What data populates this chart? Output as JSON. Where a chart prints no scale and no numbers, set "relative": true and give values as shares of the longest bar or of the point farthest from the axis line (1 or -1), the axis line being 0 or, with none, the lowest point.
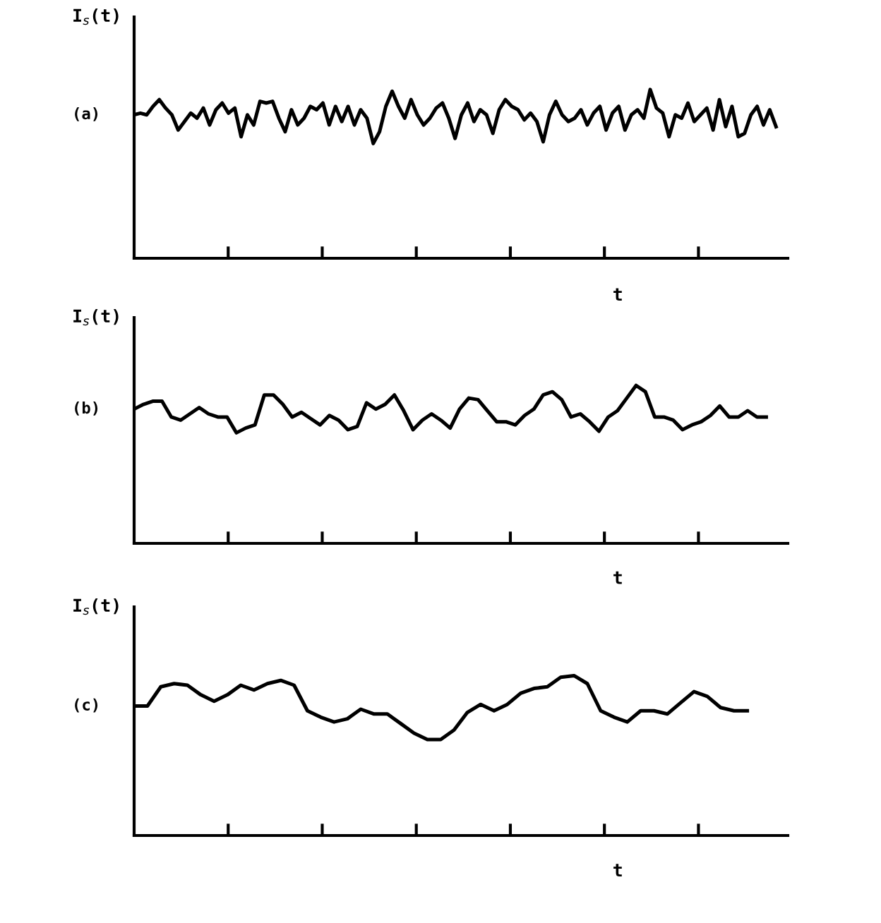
{
  "chart_data": [
    {
      "type": "line",
      "relative": true,
      "ylabel": "I$_{s}$(t)",
      "xlabel": "t",
      "annotations": [
        "(a)"
      ],
      "categories": [
        null,
        null,
        null,
        null,
        null,
        null,
        null,
        null,
        null,
        null,
        null,
        null,
        null,
        null,
        null,
        null,
        null,
        null,
        null,
        null,
        null,
        null,
        null,
        null,
        null,
        null,
        null,
        null,
        null,
        null,
        null,
        null,
        null,
        null,
        null,
        null,
        null,
        null,
        null,
        null,
        null,
        null,
        null,
        null,
        null,
        null,
        null,
        null,
        null,
        null,
        null,
        null,
        null,
        null,
        null,
        null,
        null,
        null,
        null,
        null,
        null,
        null,
        null,
        null,
        null,
        null,
        null,
        null,
        null,
        null,
        null,
        null,
        null,
        null,
        null,
        null,
        null,
        null,
        null,
        null,
        null,
        null,
        null,
        null,
        null,
        null,
        null,
        null,
        null,
        null,
        null,
        null,
        null,
        null,
        null,
        null,
        null,
        null,
        null,
        null,
        null,
        null,
        null
      ],
      "series": [
        {
          "color": "#000000",
          "values": [
            0.85,
            0.86,
            0.85,
            0.9,
            0.94,
            0.89,
            0.85,
            0.76,
            0.81,
            0.86,
            0.83,
            0.89,
            0.79,
            0.88,
            0.92,
            0.86,
            0.89,
            0.72,
            0.85,
            0.79,
            0.93,
            0.92,
            0.93,
            0.83,
            0.75,
            0.88,
            0.79,
            0.83,
            0.9,
            0.88,
            0.92,
            0.79,
            0.9,
            0.81,
            0.9,
            0.79,
            0.88,
            0.83,
            0.68,
            0.75,
            0.9,
            0.99,
            0.9,
            0.83,
            0.94,
            0.85,
            0.79,
            0.83,
            0.89,
            0.92,
            0.83,
            0.71,
            0.85,
            0.92,
            0.81,
            0.88,
            0.85,
            0.74,
            0.88,
            0.94,
            0.9,
            0.88,
            0.82,
            0.86,
            0.81,
            0.69,
            0.85,
            0.93,
            0.85,
            0.81,
            0.83,
            0.88,
            0.79,
            0.86,
            0.9,
            0.76,
            0.86,
            0.9,
            0.76,
            0.85,
            0.88,
            0.83,
            1,
            0.89,
            0.86,
            0.72,
            0.85,
            0.83,
            0.92,
            0.81,
            0.85,
            0.89,
            0.76,
            0.94,
            0.78,
            0.9,
            0.72,
            0.74,
            0.85,
            0.9,
            0.79,
            0.88,
            0.78
          ]
        }
      ]
    },
    {
      "type": "line",
      "relative": true,
      "ylabel": "I$_{s}$(t)",
      "xlabel": "t",
      "annotations": [
        "(b)"
      ],
      "categories": [
        null,
        null,
        null,
        null,
        null,
        null,
        null,
        null,
        null,
        null,
        null,
        null,
        null,
        null,
        null,
        null,
        null,
        null,
        null,
        null,
        null,
        null,
        null,
        null,
        null,
        null,
        null,
        null,
        null,
        null,
        null,
        null,
        null,
        null,
        null,
        null,
        null,
        null,
        null,
        null,
        null,
        null,
        null,
        null,
        null,
        null,
        null,
        null,
        null,
        null,
        null,
        null,
        null,
        null,
        null,
        null,
        null,
        null,
        null,
        null,
        null,
        null,
        null,
        null,
        null,
        null,
        null,
        null,
        null
      ],
      "series": [
        {
          "color": "#000000",
          "values": [
            0.85,
            0.88,
            0.9,
            0.9,
            0.8,
            0.78,
            0.82,
            0.86,
            0.82,
            0.8,
            0.8,
            0.7,
            0.73,
            0.75,
            0.94,
            0.94,
            0.88,
            0.8,
            0.83,
            0.79,
            0.75,
            0.81,
            0.78,
            0.72,
            0.74,
            0.89,
            0.85,
            0.88,
            0.94,
            0.84,
            0.72,
            0.78,
            0.82,
            0.78,
            0.73,
            0.85,
            0.92,
            0.91,
            0.84,
            0.77,
            0.77,
            0.75,
            0.81,
            0.85,
            0.94,
            0.96,
            0.91,
            0.8,
            0.82,
            0.77,
            0.71,
            0.8,
            0.84,
            0.92,
            1,
            0.96,
            0.8,
            0.8,
            0.78,
            0.72,
            0.75,
            0.77,
            0.81,
            0.87,
            0.8,
            0.8,
            0.84,
            0.8,
            0.8
          ]
        }
      ]
    },
    {
      "type": "line",
      "relative": true,
      "ylabel": "I$_{s}$(t)",
      "xlabel": "t",
      "annotations": [
        "(c)"
      ],
      "categories": [
        null,
        null,
        null,
        null,
        null,
        null,
        null,
        null,
        null,
        null,
        null,
        null,
        null,
        null,
        null,
        null,
        null,
        null,
        null,
        null,
        null,
        null,
        null,
        null,
        null,
        null,
        null,
        null,
        null,
        null,
        null,
        null,
        null,
        null,
        null,
        null,
        null,
        null,
        null,
        null,
        null,
        null,
        null,
        null,
        null,
        null,
        null
      ],
      "series": [
        {
          "color": "#000000",
          "values": [
            0.81,
            0.81,
            0.93,
            0.95,
            0.94,
            0.88,
            0.84,
            0.88,
            0.94,
            0.91,
            0.95,
            0.97,
            0.94,
            0.78,
            0.74,
            0.71,
            0.73,
            0.79,
            0.76,
            0.76,
            0.7,
            0.64,
            0.6,
            0.6,
            0.66,
            0.77,
            0.82,
            0.78,
            0.82,
            0.89,
            0.92,
            0.93,
            0.99,
            1,
            0.95,
            0.78,
            0.74,
            0.71,
            0.78,
            0.78,
            0.76,
            0.83,
            0.9,
            0.87,
            0.8,
            0.78,
            0.78
          ]
        }
      ]
    }
  ]
}
